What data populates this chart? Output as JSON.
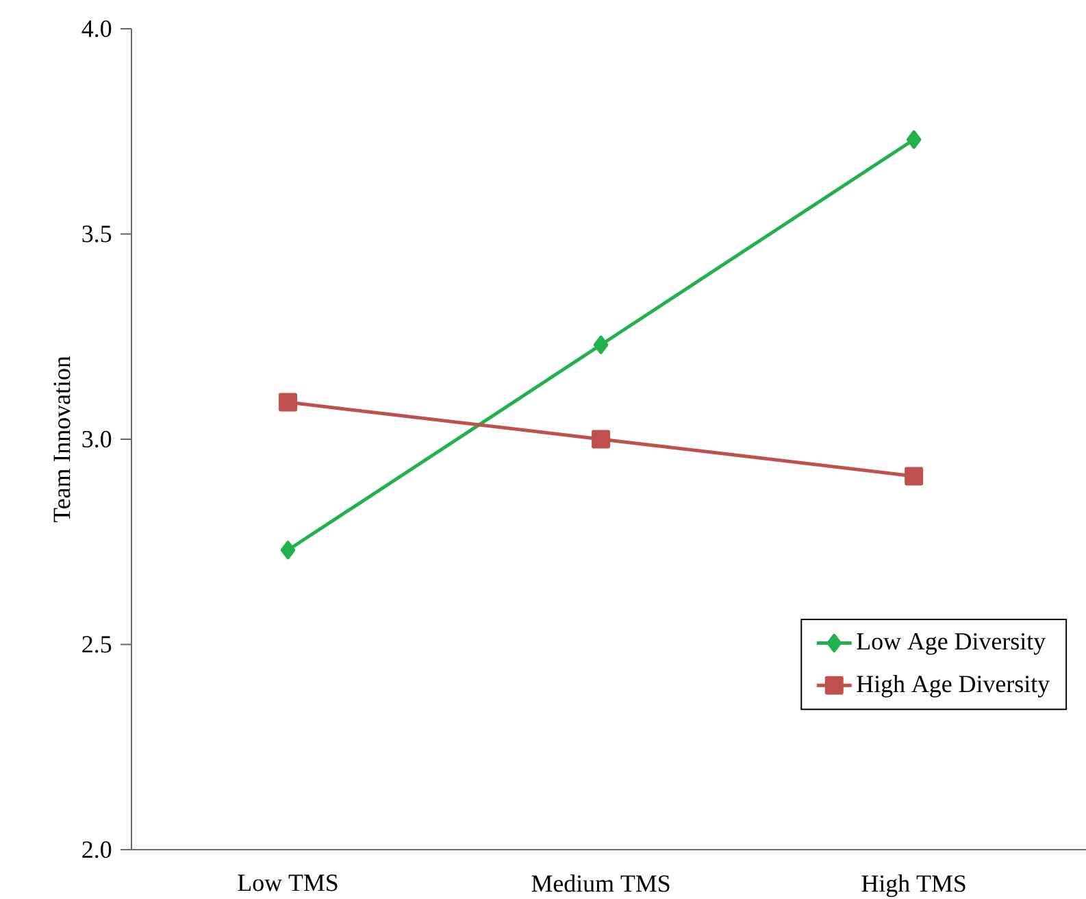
{
  "chart_data": {
    "type": "line",
    "ylabel": "Team Innovation",
    "categories": [
      "Low TMS",
      "Medium TMS",
      "High TMS"
    ],
    "series": [
      {
        "name": "Low Age Diversity",
        "color": "#22b14c",
        "marker": "diamond",
        "values": [
          2.73,
          3.23,
          3.73
        ]
      },
      {
        "name": "High Age Diversity",
        "color": "#c0504d",
        "marker": "square",
        "values": [
          3.09,
          3.0,
          2.91
        ]
      }
    ],
    "ylim": [
      2.0,
      4.0
    ],
    "yticks": [
      {
        "value": 2,
        "label": "2.0"
      },
      {
        "value": 2.5,
        "label": "2.5"
      },
      {
        "value": 3,
        "label": "3.0"
      },
      {
        "value": 3.5,
        "label": "3.5"
      },
      {
        "value": 4,
        "label": "4.0"
      }
    ],
    "legend": "bottom right",
    "grid": false,
    "line_style": "solid"
  }
}
